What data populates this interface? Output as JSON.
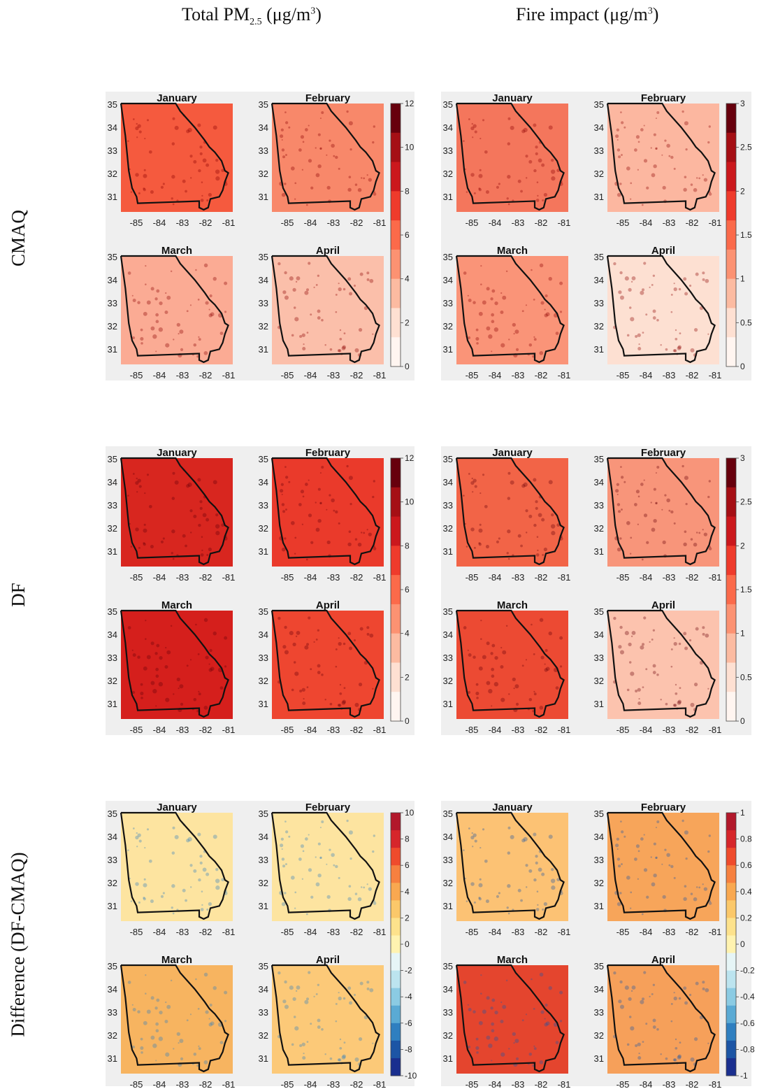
{
  "figure": {
    "columns": {
      "total": {
        "prefix": "Total PM",
        "sub": "2.5",
        "unit": " (μg/m",
        "sup": "3",
        "close": ")"
      },
      "fire": {
        "prefix": "Fire impact (μg/m",
        "sup": "3",
        "close": ")"
      }
    },
    "rows": [
      "CMAQ",
      "DF",
      "Difference (DF-CMAQ)"
    ],
    "months": [
      "January",
      "February",
      "March",
      "April"
    ],
    "lat_ticks": [
      "35",
      "34",
      "33",
      "32",
      "31"
    ],
    "lon_ticks": [
      "-85",
      "-84",
      "-83",
      "-82",
      "-81"
    ]
  },
  "colorbars": {
    "total_abs": {
      "labels": [
        "12",
        "10",
        "8",
        "6",
        "4",
        "2",
        "0"
      ],
      "colors": [
        "#67000d",
        "#a50f15",
        "#cb181d",
        "#ef3b2c",
        "#fb6a4a",
        "#fc9272",
        "#fcbba1",
        "#fee0d2",
        "#fff5f0"
      ]
    },
    "fire_abs": {
      "labels": [
        "3",
        "2.5",
        "2",
        "1.5",
        "1",
        "0.5",
        "0"
      ],
      "colors": [
        "#67000d",
        "#a50f15",
        "#cb181d",
        "#ef3b2c",
        "#fb6a4a",
        "#fc9272",
        "#fcbba1",
        "#fee0d2",
        "#fff5f0"
      ]
    },
    "total_diff": {
      "labels": [
        "10",
        "8",
        "6",
        "4",
        "2",
        "0",
        "-2",
        "-4",
        "-6",
        "-8",
        "-10"
      ]
    },
    "fire_diff": {
      "labels": [
        "1",
        "0.8",
        "0.6",
        "0.4",
        "0.2",
        "0",
        "-0.2",
        "-0.4",
        "-0.6",
        "-0.8",
        "-1"
      ]
    },
    "diff_colors": [
      "#b2182b",
      "#d6262b",
      "#ef4b2c",
      "#f6803f",
      "#f9a850",
      "#fbc86a",
      "#fde28c",
      "#fff3b0",
      "#e6f5f6",
      "#bce4ef",
      "#8bcbe3",
      "#5aaad4",
      "#2f7fc0",
      "#1c55a5",
      "#1a2f8f"
    ]
  },
  "panel_colors": {
    "cmaq_total": [
      "#f55a3e",
      "#f8886a",
      "#fbab94",
      "#fbbfaa"
    ],
    "cmaq_fire": [
      "#f4765c",
      "#fcb7a0",
      "#fa9478",
      "#fde0d2"
    ],
    "df_total": [
      "#d8261f",
      "#ea3a2b",
      "#d51f1c",
      "#ee4630"
    ],
    "df_fire": [
      "#f26447",
      "#f8957a",
      "#ec4a33",
      "#fcc3ae"
    ],
    "diff_total": [
      "#fde4a0",
      "#fde4a0",
      "#f7b460",
      "#fcc978"
    ],
    "diff_fire": [
      "#fcc274",
      "#f7a55a",
      "#e4452e",
      "#f6a05a"
    ]
  }
}
